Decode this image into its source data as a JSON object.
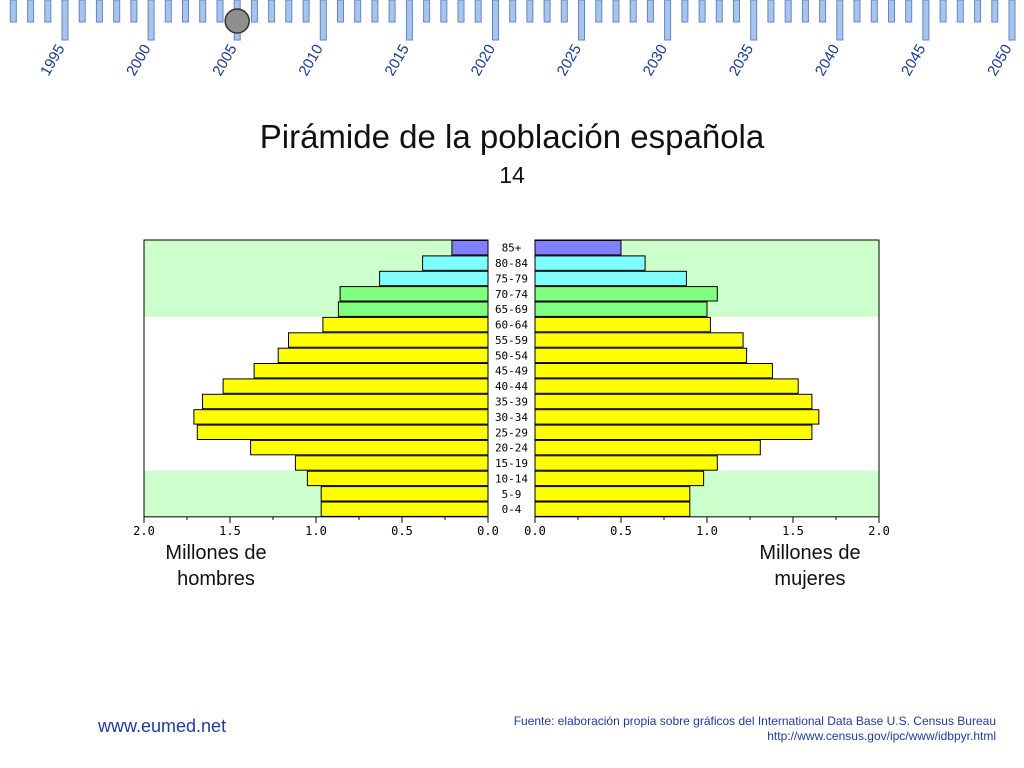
{
  "timeline": {
    "years": [
      "1995",
      "2000",
      "2005",
      "2010",
      "2015",
      "2020",
      "2025",
      "2030",
      "2035",
      "2040",
      "2045",
      "2050"
    ],
    "selected_year": "2005",
    "tick_color": "#a8c4ea",
    "tick_border": "#5f87c6",
    "knob_color": "#8f8f8f"
  },
  "header": {
    "title": "Pirámide de la población española",
    "subtitle": "14"
  },
  "captions": {
    "left": "Millones de\nhombres",
    "right": "Millones de\nmujeres"
  },
  "footer": {
    "site": "www.eumed.net",
    "source_line1": "Fuente: elaboración propia sobre gráficos del International Data Base U.S. Census Bureau",
    "source_line2": "http://www.census.gov/ipc/www/idbpyr.html"
  },
  "chart_data": {
    "type": "bar",
    "orientation": "horizontal",
    "layout": "population-pyramid",
    "categories": [
      "85+",
      "80-84",
      "75-79",
      "70-74",
      "65-69",
      "60-64",
      "55-59",
      "50-54",
      "45-49",
      "40-44",
      "35-39",
      "30-34",
      "25-29",
      "20-24",
      "15-19",
      "10-14",
      "5-9",
      "0-4"
    ],
    "series": [
      {
        "side": "left",
        "values": [
          0.21,
          0.38,
          0.63,
          0.86,
          0.87,
          0.96,
          1.16,
          1.22,
          1.36,
          1.54,
          1.66,
          1.71,
          1.69,
          1.38,
          1.12,
          1.05,
          0.97,
          0.97
        ]
      },
      {
        "side": "right",
        "values": [
          0.5,
          0.64,
          0.88,
          1.06,
          1.0,
          1.02,
          1.21,
          1.23,
          1.38,
          1.53,
          1.61,
          1.65,
          1.61,
          1.31,
          1.06,
          0.98,
          0.9,
          0.9
        ]
      }
    ],
    "left_ticks": [
      "2.0",
      "1.5",
      "1.0",
      "0.5",
      "0.0"
    ],
    "right_ticks": [
      "0.0",
      "0.5",
      "1.0",
      "1.5",
      "2.0"
    ],
    "xlim": [
      0,
      2.0
    ],
    "band_colors": {
      "elderly_high": "#8080ff",
      "elderly": "#80ffff",
      "retirement": "#80ff80",
      "adult": "#ffff00"
    },
    "band_assignment": [
      "elderly_high",
      "elderly",
      "elderly",
      "retirement",
      "retirement",
      "adult",
      "adult",
      "adult",
      "adult",
      "adult",
      "adult",
      "adult",
      "adult",
      "adult",
      "adult",
      "adult",
      "adult",
      "adult"
    ],
    "background_bands": {
      "old_rows": 5,
      "young_rows": 3,
      "color": "#ccffcc"
    }
  }
}
